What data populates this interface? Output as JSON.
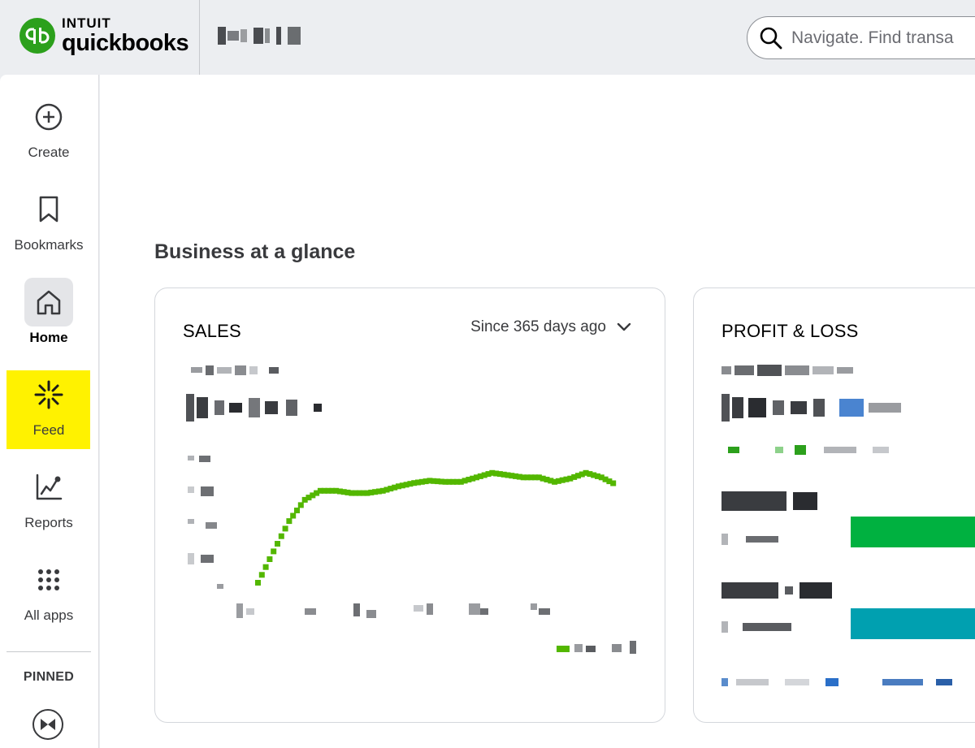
{
  "brand": {
    "intuit": "INTUIT",
    "product": "quickbooks",
    "color": "#2ca01c"
  },
  "search": {
    "placeholder": "Navigate. Find transa"
  },
  "sidebar": {
    "items": [
      {
        "label": "Create",
        "icon": "plus-circle-icon"
      },
      {
        "label": "Bookmarks",
        "icon": "bookmark-icon"
      },
      {
        "label": "Home",
        "icon": "home-icon",
        "active": true
      },
      {
        "label": "Feed",
        "icon": "sparkle-icon",
        "highlight": "#fff200"
      },
      {
        "label": "Reports",
        "icon": "chart-line-icon"
      },
      {
        "label": "All apps",
        "icon": "grid-dots-icon"
      }
    ],
    "pinned_label": "PINNED",
    "pinned_icon": "bowtie-icon"
  },
  "main": {
    "section_title": "Business at a glance",
    "sales": {
      "title": "SALES",
      "period": "Since 365 days ago",
      "line_color": "#53b700",
      "trend": [
        0.0,
        0.28,
        0.55,
        0.74,
        0.82,
        0.82,
        0.8,
        0.8,
        0.82,
        0.86,
        0.89,
        0.91,
        0.9,
        0.9,
        0.94,
        0.98,
        0.96,
        0.94,
        0.94,
        0.9,
        0.93,
        0.98,
        0.94,
        0.87
      ]
    },
    "profit_loss": {
      "title": "PROFIT & LOSS",
      "income_bar_color": "#00b140",
      "expense_bar_color": "#00a0b0"
    }
  }
}
